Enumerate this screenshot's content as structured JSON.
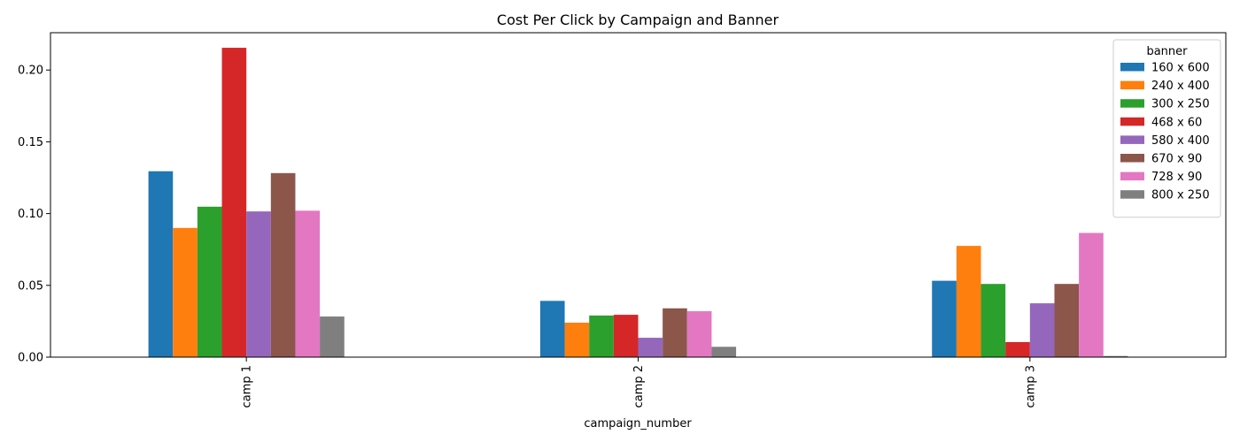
{
  "chart_data": {
    "type": "bar",
    "title": "Cost Per Click by Campaign and Banner",
    "xlabel": "campaign_number",
    "ylabel": "",
    "categories": [
      "camp 1",
      "camp 2",
      "camp 3"
    ],
    "ylim": [
      0,
      0.226
    ],
    "yticks": [
      "0.00",
      "0.05",
      "0.10",
      "0.15",
      "0.20"
    ],
    "legend_title": "banner",
    "legend_position": "top-right",
    "series": [
      {
        "name": "160 x 600",
        "color": "#1f77b4",
        "values": [
          0.1295,
          0.0392,
          0.0532
        ]
      },
      {
        "name": "240 x 400",
        "color": "#ff7f0e",
        "values": [
          0.09,
          0.024,
          0.0775
        ]
      },
      {
        "name": "300 x 250",
        "color": "#2ca02c",
        "values": [
          0.1048,
          0.029,
          0.051
        ]
      },
      {
        "name": "468 x 60",
        "color": "#d62728",
        "values": [
          0.2155,
          0.0295,
          0.0105
        ]
      },
      {
        "name": "580 x 400",
        "color": "#9467bd",
        "values": [
          0.1015,
          0.0135,
          0.0375
        ]
      },
      {
        "name": "670 x 90",
        "color": "#8c564b",
        "values": [
          0.1282,
          0.034,
          0.051
        ]
      },
      {
        "name": "728 x 90",
        "color": "#e377c2",
        "values": [
          0.102,
          0.032,
          0.0865
        ]
      },
      {
        "name": "800 x 250",
        "color": "#7f7f7f",
        "values": [
          0.0283,
          0.0072,
          0.0008
        ]
      }
    ]
  }
}
